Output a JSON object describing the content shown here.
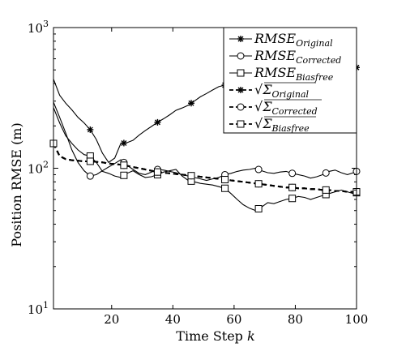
{
  "chart_data": {
    "type": "line",
    "xlabel": "Time Step ",
    "xlabel_var": "k",
    "ylabel": "Position RMSE (m)",
    "y_scale": "log",
    "xlim": [
      1,
      100
    ],
    "ylim": [
      10,
      1000
    ],
    "x_ticks": [
      20,
      40,
      60,
      80,
      100
    ],
    "y_ticks": [
      {
        "value": 10,
        "base": "10",
        "exp": "1"
      },
      {
        "value": 100,
        "base": "10",
        "exp": "2"
      },
      {
        "value": 1000,
        "base": "10",
        "exp": "3"
      }
    ],
    "grid": false,
    "legend_position": "top-right",
    "series": [
      {
        "name": "RMSE",
        "name_sub": "Original",
        "marker": "star",
        "style": "solid",
        "x": [
          1,
          3,
          5,
          7,
          9,
          11,
          13,
          15,
          17,
          19,
          21,
          23,
          25,
          27,
          29,
          31,
          33,
          35,
          37,
          39,
          41,
          43,
          45,
          47,
          49,
          51,
          53,
          55,
          57,
          59,
          61,
          63,
          65,
          67,
          69,
          71,
          73,
          75,
          77,
          79,
          81,
          83,
          85,
          87,
          89,
          91,
          93,
          95,
          97,
          99,
          100
        ],
        "y": [
          430,
          330,
          290,
          260,
          230,
          210,
          188,
          160,
          128,
          110,
          118,
          150,
          152,
          158,
          172,
          185,
          198,
          212,
          225,
          240,
          258,
          268,
          280,
          300,
          322,
          340,
          360,
          380,
          390,
          405,
          418,
          430,
          440,
          450,
          458,
          462,
          464,
          466,
          468,
          470,
          472,
          475,
          478,
          482,
          485,
          490,
          494,
          498,
          505,
          512,
          520
        ]
      },
      {
        "name": "RMSE",
        "name_sub": "Corrected",
        "marker": "circle",
        "style": "solid",
        "x": [
          1,
          3,
          5,
          7,
          9,
          11,
          13,
          15,
          17,
          19,
          21,
          23,
          25,
          27,
          29,
          31,
          33,
          35,
          37,
          39,
          41,
          43,
          45,
          47,
          49,
          51,
          53,
          55,
          57,
          59,
          61,
          63,
          65,
          67,
          69,
          71,
          73,
          75,
          77,
          79,
          81,
          83,
          85,
          87,
          89,
          91,
          93,
          95,
          97,
          99,
          100
        ],
        "y": [
          295,
          230,
          178,
          135,
          110,
          96,
          88,
          90,
          96,
          102,
          108,
          115,
          105,
          98,
          92,
          90,
          94,
          98,
          97,
          95,
          93,
          90,
          88,
          86,
          84,
          82,
          84,
          86,
          90,
          92,
          95,
          97,
          98,
          100,
          96,
          93,
          92,
          94,
          95,
          92,
          90,
          88,
          85,
          87,
          90,
          95,
          97,
          93,
          90,
          93,
          95
        ]
      },
      {
        "name": "RMSE",
        "name_sub": "Biasfree",
        "marker": "square",
        "style": "solid",
        "x": [
          1,
          3,
          5,
          7,
          9,
          11,
          13,
          15,
          17,
          19,
          21,
          23,
          25,
          27,
          29,
          31,
          33,
          35,
          37,
          39,
          41,
          43,
          45,
          47,
          49,
          51,
          53,
          55,
          57,
          59,
          61,
          63,
          65,
          67,
          69,
          71,
          73,
          75,
          77,
          79,
          81,
          83,
          85,
          87,
          89,
          91,
          93,
          95,
          97,
          99,
          100
        ],
        "y": [
          270,
          210,
          170,
          150,
          135,
          125,
          122,
          110,
          95,
          92,
          88,
          86,
          92,
          96,
          90,
          86,
          87,
          90,
          94,
          96,
          98,
          88,
          82,
          80,
          78,
          77,
          76,
          74,
          72,
          66,
          60,
          55,
          52,
          50,
          53,
          57,
          56,
          58,
          60,
          61,
          63,
          62,
          60,
          62,
          64,
          66,
          68,
          70,
          68,
          66,
          67
        ]
      },
      {
        "name": "√Σ",
        "name_sub": "Original",
        "marker": "star",
        "style": "dashed",
        "x": [
          1,
          3,
          5,
          7,
          9,
          11,
          13,
          15,
          17,
          19,
          21,
          23,
          25,
          27,
          29,
          31,
          33,
          35,
          37,
          39,
          41,
          43,
          45,
          47,
          49,
          51,
          53,
          55,
          57,
          59,
          61,
          63,
          65,
          67,
          69,
          71,
          73,
          75,
          77,
          79,
          81,
          83,
          85,
          87,
          89,
          91,
          93,
          95,
          97,
          99,
          100
        ],
        "y": [
          150,
          122,
          116,
          114,
          113,
          112,
          112,
          111,
          110,
          108,
          107,
          106,
          104,
          102,
          100,
          98,
          96,
          94,
          93,
          92,
          91,
          90,
          89,
          88,
          87,
          86,
          85,
          84,
          83,
          82,
          81,
          80,
          79,
          78,
          77,
          76,
          75,
          74,
          73,
          73,
          72,
          72,
          71,
          71,
          70,
          70,
          69,
          69,
          68,
          68,
          68
        ]
      },
      {
        "name": "√Σ",
        "name_sub": "Corrected",
        "marker": "circle",
        "style": "dashed",
        "x": [
          1,
          3,
          5,
          7,
          9,
          11,
          13,
          15,
          17,
          19,
          21,
          23,
          25,
          27,
          29,
          31,
          33,
          35,
          37,
          39,
          41,
          43,
          45,
          47,
          49,
          51,
          53,
          55,
          57,
          59,
          61,
          63,
          65,
          67,
          69,
          71,
          73,
          75,
          77,
          79,
          81,
          83,
          85,
          87,
          89,
          91,
          93,
          95,
          97,
          99,
          100
        ],
        "y": [
          150,
          122,
          116,
          114,
          113,
          112,
          112,
          111,
          110,
          108,
          107,
          106,
          104,
          102,
          100,
          98,
          96,
          94,
          93,
          92,
          91,
          90,
          89,
          88,
          87,
          86,
          85,
          84,
          83,
          82,
          81,
          80,
          79,
          78,
          77,
          76,
          75,
          74,
          73,
          73,
          72,
          72,
          71,
          71,
          70,
          70,
          69,
          69,
          68,
          68,
          68
        ]
      },
      {
        "name": "√Σ",
        "name_sub": "Biasfree",
        "marker": "square",
        "style": "dashed",
        "x": [
          1,
          3,
          5,
          7,
          9,
          11,
          13,
          15,
          17,
          19,
          21,
          23,
          25,
          27,
          29,
          31,
          33,
          35,
          37,
          39,
          41,
          43,
          45,
          47,
          49,
          51,
          53,
          55,
          57,
          59,
          61,
          63,
          65,
          67,
          69,
          71,
          73,
          75,
          77,
          79,
          81,
          83,
          85,
          87,
          89,
          91,
          93,
          95,
          97,
          99,
          100
        ],
        "y": [
          150,
          122,
          116,
          114,
          113,
          112,
          112,
          111,
          110,
          108,
          107,
          106,
          104,
          102,
          100,
          98,
          96,
          94,
          93,
          92,
          91,
          90,
          89,
          88,
          87,
          86,
          85,
          84,
          83,
          82,
          81,
          80,
          79,
          78,
          77,
          76,
          75,
          74,
          73,
          73,
          72,
          72,
          71,
          71,
          70,
          70,
          69,
          69,
          68,
          68,
          68
        ]
      }
    ],
    "markers": [
      {
        "series": 0,
        "x": [
          13,
          24,
          35,
          46,
          57,
          68,
          79,
          90,
          100
        ]
      },
      {
        "series": 1,
        "x": [
          13,
          24,
          35,
          46,
          57,
          68,
          79,
          90,
          100
        ]
      },
      {
        "series": 2,
        "x": [
          13,
          24,
          35,
          46,
          57,
          68,
          79,
          90,
          100
        ]
      },
      {
        "series": 3,
        "x": [
          1,
          13,
          24,
          35,
          46,
          57,
          68,
          79,
          90,
          100
        ]
      },
      {
        "series": 4,
        "x": [
          1,
          13,
          24,
          35,
          46,
          57,
          68,
          79,
          90,
          100
        ]
      },
      {
        "series": 5,
        "x": [
          1,
          13,
          24,
          35,
          46,
          57,
          68,
          79,
          90,
          100
        ]
      }
    ]
  }
}
